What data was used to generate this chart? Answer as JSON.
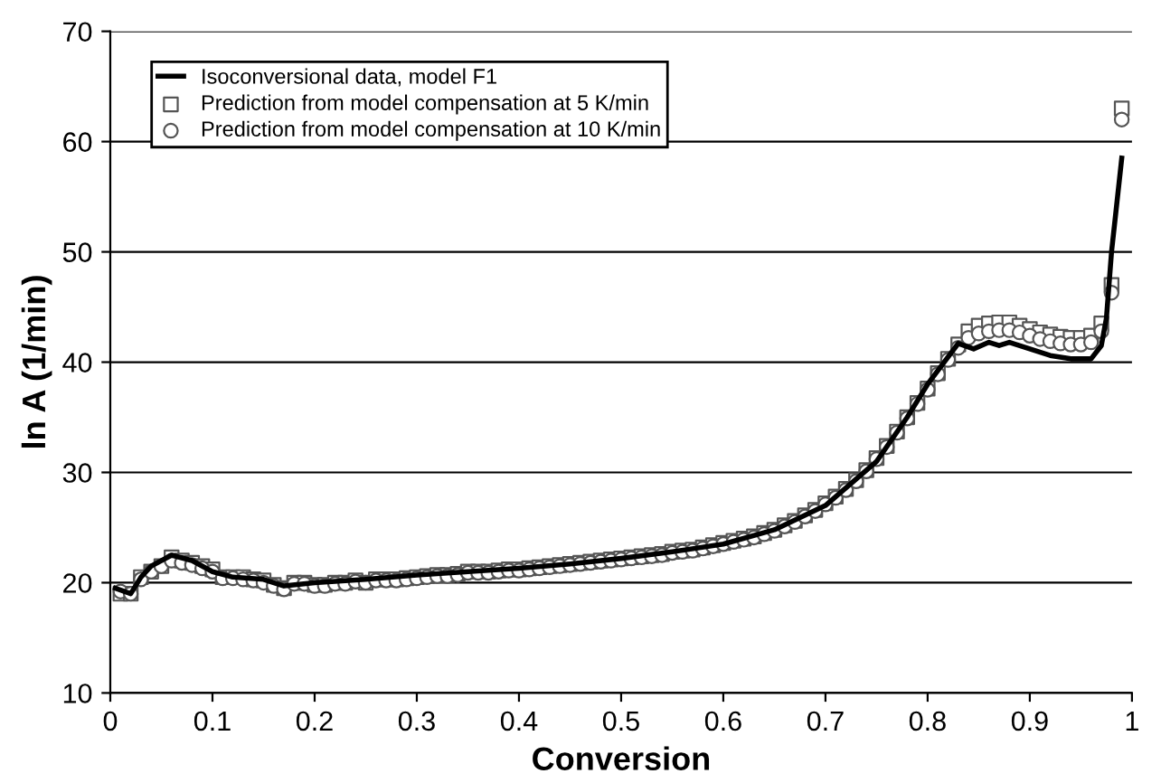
{
  "chart_data": {
    "type": "line",
    "xlabel": "Conversion",
    "ylabel": "ln A (1/min)",
    "xlim": [
      0,
      1
    ],
    "xticks": [
      0,
      0.1,
      0.2,
      0.3,
      0.4,
      0.5,
      0.6,
      0.7,
      0.8,
      0.9,
      1
    ],
    "ylim": [
      10,
      70
    ],
    "yticks": [
      10,
      20,
      30,
      40,
      50,
      60,
      70
    ],
    "grid": "y",
    "legend": "top left",
    "series": [
      {
        "name": "Isoconversional data, model F1",
        "color": "#000000",
        "marker": "none",
        "line_style": "solid",
        "x": [
          0.005,
          0.02,
          0.03,
          0.04,
          0.06,
          0.08,
          0.1,
          0.12,
          0.15,
          0.17,
          0.2,
          0.25,
          0.3,
          0.35,
          0.4,
          0.45,
          0.5,
          0.55,
          0.6,
          0.65,
          0.7,
          0.75,
          0.78,
          0.8,
          0.83,
          0.845,
          0.86,
          0.87,
          0.88,
          0.9,
          0.92,
          0.94,
          0.96,
          0.97,
          0.975,
          0.98,
          0.99
        ],
        "values": [
          19.5,
          19,
          20.5,
          21.5,
          22.5,
          22,
          21,
          20.5,
          20.3,
          19.7,
          20,
          20.3,
          20.7,
          21,
          21.3,
          21.7,
          22.2,
          22.8,
          23.5,
          24.8,
          27,
          31,
          35,
          38,
          41.7,
          41.2,
          41.8,
          41.5,
          41.8,
          41.2,
          40.6,
          40.3,
          40.3,
          41.5,
          44,
          50,
          58.5
        ]
      },
      {
        "name": "Prediction from model compensation at 5 K/min",
        "type": "scatter",
        "color": "#555555",
        "marker": "square",
        "x": [
          0.01,
          0.02,
          0.03,
          0.04,
          0.05,
          0.06,
          0.07,
          0.08,
          0.09,
          0.1,
          0.11,
          0.12,
          0.13,
          0.14,
          0.15,
          0.16,
          0.17,
          0.18,
          0.19,
          0.2,
          0.21,
          0.22,
          0.23,
          0.24,
          0.25,
          0.26,
          0.27,
          0.28,
          0.29,
          0.3,
          0.31,
          0.32,
          0.33,
          0.34,
          0.35,
          0.36,
          0.37,
          0.38,
          0.39,
          0.4,
          0.41,
          0.42,
          0.43,
          0.44,
          0.45,
          0.46,
          0.47,
          0.48,
          0.49,
          0.5,
          0.51,
          0.52,
          0.53,
          0.54,
          0.55,
          0.56,
          0.57,
          0.58,
          0.59,
          0.6,
          0.61,
          0.62,
          0.63,
          0.64,
          0.65,
          0.66,
          0.67,
          0.68,
          0.69,
          0.7,
          0.71,
          0.72,
          0.73,
          0.74,
          0.75,
          0.76,
          0.77,
          0.78,
          0.79,
          0.8,
          0.81,
          0.82,
          0.83,
          0.84,
          0.85,
          0.86,
          0.87,
          0.88,
          0.89,
          0.9,
          0.91,
          0.92,
          0.93,
          0.94,
          0.95,
          0.96,
          0.97,
          0.98,
          0.99
        ],
        "values": [
          19,
          19,
          20.5,
          21,
          21.5,
          22.3,
          22,
          21.8,
          21.5,
          21.2,
          20.5,
          20.5,
          20.5,
          20.3,
          20.2,
          19.8,
          19.5,
          20,
          20,
          19.8,
          19.8,
          20,
          20,
          20.2,
          20,
          20.3,
          20.3,
          20.3,
          20.4,
          20.5,
          20.6,
          20.7,
          20.7,
          20.8,
          21,
          21,
          21,
          21.1,
          21.2,
          21.2,
          21.3,
          21.4,
          21.5,
          21.6,
          21.7,
          21.8,
          21.9,
          22,
          22.1,
          22.2,
          22.3,
          22.4,
          22.5,
          22.6,
          22.8,
          22.9,
          23,
          23.2,
          23.4,
          23.6,
          23.8,
          24,
          24.2,
          24.5,
          24.8,
          25.2,
          25.6,
          26.1,
          26.6,
          27.2,
          27.8,
          28.5,
          29.3,
          30.2,
          31.3,
          32.4,
          33.7,
          35,
          36.3,
          37.6,
          39,
          40.3,
          41.6,
          42.8,
          43.3,
          43.5,
          43.6,
          43.6,
          43.3,
          43,
          42.7,
          42.5,
          42.3,
          42.2,
          42.2,
          42.4,
          43.5,
          47,
          63
        ]
      },
      {
        "name": "Prediction from model compensation at 10 K/min",
        "type": "scatter",
        "color": "#555555",
        "marker": "circle",
        "x": [
          0.01,
          0.02,
          0.03,
          0.04,
          0.05,
          0.06,
          0.07,
          0.08,
          0.09,
          0.1,
          0.11,
          0.12,
          0.13,
          0.14,
          0.15,
          0.16,
          0.17,
          0.18,
          0.19,
          0.2,
          0.21,
          0.22,
          0.23,
          0.24,
          0.25,
          0.26,
          0.27,
          0.28,
          0.29,
          0.3,
          0.31,
          0.32,
          0.33,
          0.34,
          0.35,
          0.36,
          0.37,
          0.38,
          0.39,
          0.4,
          0.41,
          0.42,
          0.43,
          0.44,
          0.45,
          0.46,
          0.47,
          0.48,
          0.49,
          0.5,
          0.51,
          0.52,
          0.53,
          0.54,
          0.55,
          0.56,
          0.57,
          0.58,
          0.59,
          0.6,
          0.61,
          0.62,
          0.63,
          0.64,
          0.65,
          0.66,
          0.67,
          0.68,
          0.69,
          0.7,
          0.71,
          0.72,
          0.73,
          0.74,
          0.75,
          0.76,
          0.77,
          0.78,
          0.79,
          0.8,
          0.81,
          0.82,
          0.83,
          0.84,
          0.85,
          0.86,
          0.87,
          0.88,
          0.89,
          0.9,
          0.91,
          0.92,
          0.93,
          0.94,
          0.95,
          0.96,
          0.97,
          0.98,
          0.99
        ],
        "values": [
          19.2,
          19,
          20.3,
          21,
          21.5,
          22,
          21.8,
          21.6,
          21.3,
          21,
          20.4,
          20.4,
          20.3,
          20.2,
          20,
          19.7,
          19.4,
          19.9,
          19.9,
          19.7,
          19.7,
          19.9,
          19.9,
          20.1,
          20,
          20.2,
          20.2,
          20.2,
          20.3,
          20.4,
          20.5,
          20.6,
          20.6,
          20.7,
          20.9,
          20.9,
          20.9,
          21,
          21.1,
          21.1,
          21.2,
          21.3,
          21.4,
          21.5,
          21.6,
          21.7,
          21.8,
          21.9,
          22,
          22.1,
          22.2,
          22.3,
          22.4,
          22.5,
          22.7,
          22.8,
          22.9,
          23.1,
          23.3,
          23.5,
          23.7,
          23.9,
          24.1,
          24.4,
          24.7,
          25.1,
          25.5,
          26,
          26.5,
          27.1,
          27.7,
          28.4,
          29.2,
          30.1,
          31.2,
          32.3,
          33.6,
          34.9,
          36.2,
          37.5,
          38.9,
          40.2,
          41.3,
          42.2,
          42.6,
          42.8,
          42.9,
          42.9,
          42.7,
          42.4,
          42.1,
          41.9,
          41.7,
          41.6,
          41.6,
          41.8,
          42.8,
          46.3,
          62
        ]
      }
    ]
  }
}
